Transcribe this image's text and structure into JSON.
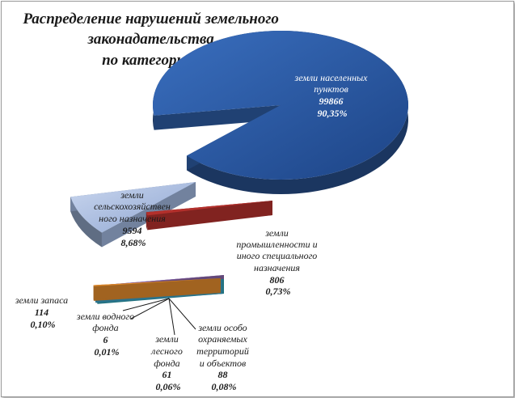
{
  "chart_data": {
    "type": "pie",
    "title_lines": [
      "Распределение нарушений земельного",
      "законадательства",
      "по категориям"
    ],
    "slices": [
      {
        "label_lines": [
          "земли населенных",
          "пунктов"
        ],
        "value": "99866",
        "percent": "90,35%",
        "num": 99866,
        "color": "#2d5aa0"
      },
      {
        "label_lines": [
          "земли",
          "сельскохозяйствен",
          "ного назначения"
        ],
        "value": "9594",
        "percent": "8,68%",
        "num": 9594,
        "color": "#9fb5db"
      },
      {
        "label_lines": [
          "земли",
          "промышленности и",
          "иного специального",
          "назначения"
        ],
        "value": "806",
        "percent": "0,73%",
        "num": 806,
        "color": "#b3302c"
      },
      {
        "label_lines": [
          "земли особо",
          "охраняемых",
          "территорий",
          "и объектов"
        ],
        "value": "88",
        "percent": "0,08%",
        "num": 88,
        "color": "#8a64a8"
      },
      {
        "label_lines": [
          "земли",
          "лесного",
          "фонда"
        ],
        "value": "61",
        "percent": "0,06%",
        "num": 61,
        "color": "#2f9fb0"
      },
      {
        "label_lines": [
          "земли водного",
          "фонда"
        ],
        "value": "6",
        "percent": "0,01%",
        "num": 6,
        "color": "#3aa0c4"
      },
      {
        "label_lines": [
          "земли запаса"
        ],
        "value": "114",
        "percent": "0,10%",
        "num": 114,
        "color": "#e08a2c"
      }
    ]
  }
}
